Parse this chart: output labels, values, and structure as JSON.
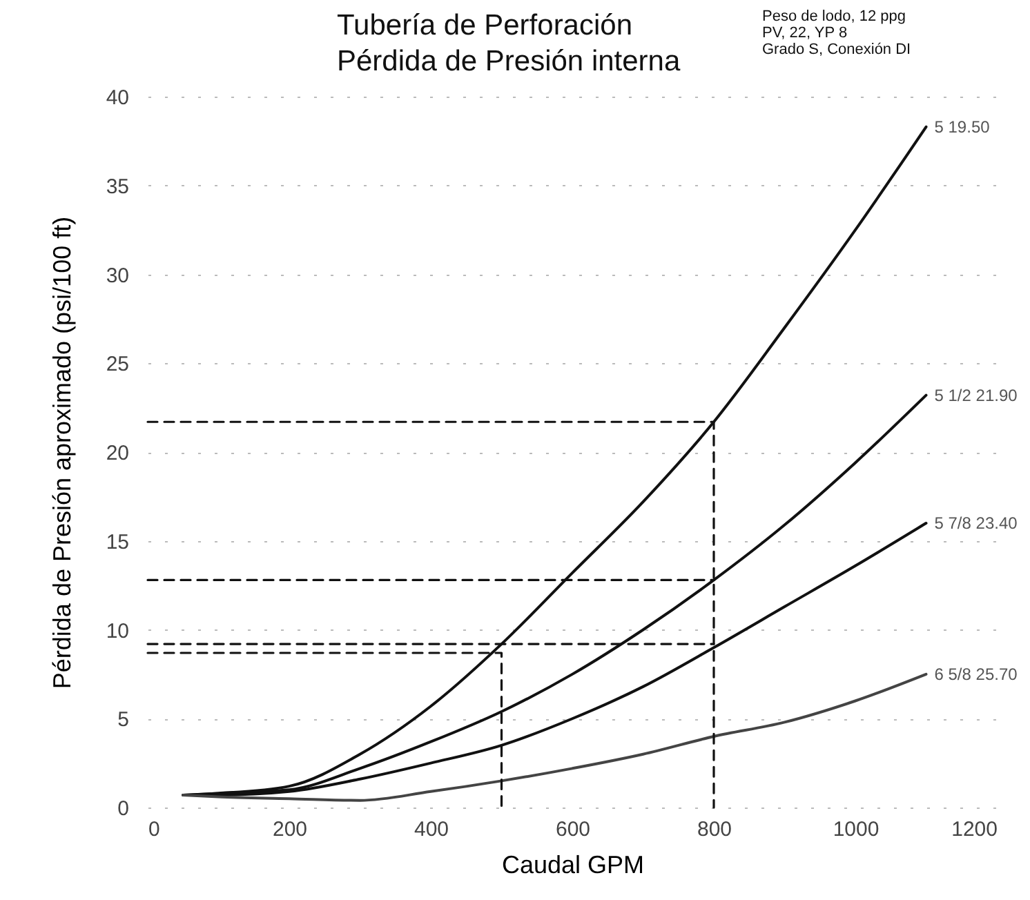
{
  "chart_data": {
    "type": "line",
    "title": "Tubería de Perforación",
    "subtitle": "Pérdida de Presión interna",
    "xlabel": "Caudal  GPM",
    "ylabel": "Pérdida de Presión aproximado (psi/100 ft)",
    "annotations": [
      "Peso de lodo, 12 ppg",
      "PV, 22, YP 8",
      "Grado S, Conexión DI"
    ],
    "xlim": [
      0,
      1200
    ],
    "xticks": [
      0,
      200,
      400,
      600,
      800,
      1000,
      1200
    ],
    "ylim": [
      0,
      40
    ],
    "yticks": [
      0,
      5,
      10,
      15,
      20,
      25,
      30,
      35,
      40
    ],
    "grid": "y",
    "line_style": "solid",
    "series": [
      {
        "name": "5 19.50",
        "color": "#111111",
        "x": [
          50,
          100,
          200,
          300,
          400,
          500,
          600,
          700,
          800,
          900,
          1000,
          1100
        ],
        "values": [
          0.7,
          0.8,
          1.2,
          3,
          5.7,
          9.2,
          13.2,
          17.2,
          21.7,
          27,
          32.5,
          38.3
        ]
      },
      {
        "name": "5 1/2 21.90",
        "color": "#111111",
        "x": [
          50,
          100,
          200,
          300,
          400,
          500,
          600,
          700,
          800,
          900,
          1000,
          1100
        ],
        "values": [
          0.7,
          0.8,
          1,
          2.2,
          3.7,
          5.4,
          7.5,
          10,
          12.8,
          15.9,
          19.4,
          23.2
        ]
      },
      {
        "name": "5 7/8 23.40",
        "color": "#111111",
        "x": [
          50,
          100,
          200,
          300,
          400,
          500,
          600,
          700,
          800,
          900,
          1000,
          1100
        ],
        "values": [
          0.7,
          0.7,
          0.9,
          1.6,
          2.5,
          3.5,
          5,
          6.8,
          9,
          11.3,
          13.6,
          16
        ]
      },
      {
        "name": "6 5/8 25.70",
        "color": "#444444",
        "x": [
          50,
          100,
          200,
          300,
          400,
          500,
          600,
          700,
          800,
          900,
          1000,
          1100
        ],
        "values": [
          0.7,
          0.6,
          0.5,
          0.4,
          0.9,
          1.5,
          2.2,
          3,
          4,
          4.8,
          6,
          7.5
        ]
      },
      {
        "color": "#111111",
        "line_style": "dashed",
        "x": [
          0,
          800,
          800
        ],
        "values": [
          21.7,
          21.7,
          0
        ]
      },
      {
        "color": "#111111",
        "line_style": "dashed",
        "x": [
          0,
          800
        ],
        "values": [
          12.8,
          12.8
        ]
      },
      {
        "color": "#111111",
        "line_style": "dashed",
        "x": [
          0,
          800
        ],
        "values": [
          9.2,
          9.2
        ]
      },
      {
        "color": "#111111",
        "line_style": "dashed",
        "x": [
          0,
          500,
          500
        ],
        "values": [
          8.7,
          8.7,
          0
        ]
      }
    ]
  }
}
